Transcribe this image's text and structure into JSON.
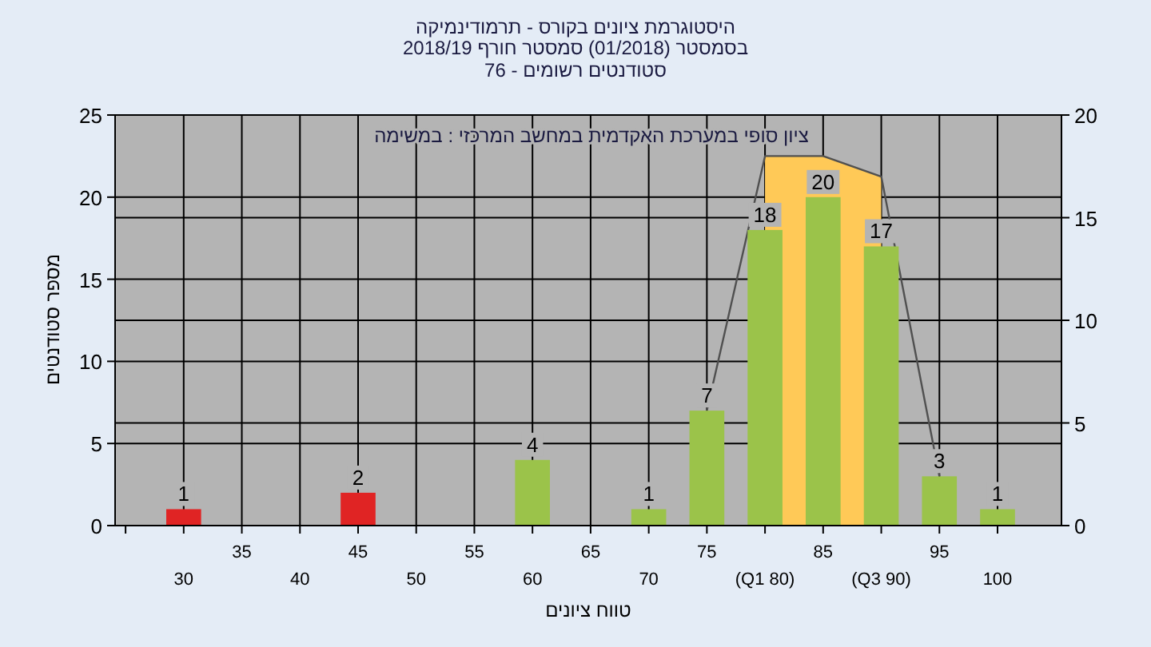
{
  "chart_data": {
    "type": "bar",
    "title": "היסטוגרמת ציונים בקורס - תרמודינמיקה",
    "subtitle": "בסמסטר (01/2018) סמסטר חורף 2018/19",
    "annotations": [
      "סטודנטים רשומים - 76",
      "ציון סופי במערכת האקדמית במחשב המרכזי : במשימה"
    ],
    "xlabel": "טווח ציונים",
    "ylabel": "מספר סטודנטים",
    "categories": [
      "30",
      "35",
      "40",
      "45",
      "50",
      "55",
      "60",
      "65",
      "70",
      "75",
      "(Q1 80)",
      "85",
      "(Q3 90)",
      "95",
      "100"
    ],
    "series": [
      {
        "type": "area",
        "axis": "y2",
        "color": "#ffc957",
        "values": [
          null,
          null,
          null,
          null,
          null,
          null,
          null,
          null,
          null,
          null,
          18,
          18,
          17,
          null,
          null
        ]
      },
      {
        "type": "line",
        "axis": "y2",
        "color": "#505050",
        "values": [
          null,
          null,
          null,
          null,
          null,
          null,
          null,
          null,
          null,
          5.6,
          18,
          18,
          17,
          2.4,
          null
        ]
      },
      {
        "colors": [
          "#e02424",
          null,
          null,
          "#e02424",
          null,
          null,
          "#9bc34a",
          null,
          "#9bc34a",
          "#9bc34a",
          "#9bc34a",
          "#9bc34a",
          "#9bc34a",
          "#9bc34a",
          "#9bc34a"
        ],
        "values": [
          1,
          null,
          null,
          2,
          null,
          null,
          4,
          null,
          1,
          7,
          18,
          20,
          17,
          3,
          1
        ],
        "value_labels": [
          "1",
          null,
          null,
          "2",
          null,
          null,
          "4",
          null,
          "1",
          "7",
          "18",
          "20",
          "17",
          "3",
          "1"
        ]
      }
    ],
    "ylim": [
      0,
      25
    ],
    "yticks": [
      0,
      5,
      10,
      15,
      20,
      25
    ],
    "y2lim": [
      0,
      20
    ],
    "y2ticks": [
      0,
      5,
      10,
      15,
      20
    ],
    "grid": true
  }
}
